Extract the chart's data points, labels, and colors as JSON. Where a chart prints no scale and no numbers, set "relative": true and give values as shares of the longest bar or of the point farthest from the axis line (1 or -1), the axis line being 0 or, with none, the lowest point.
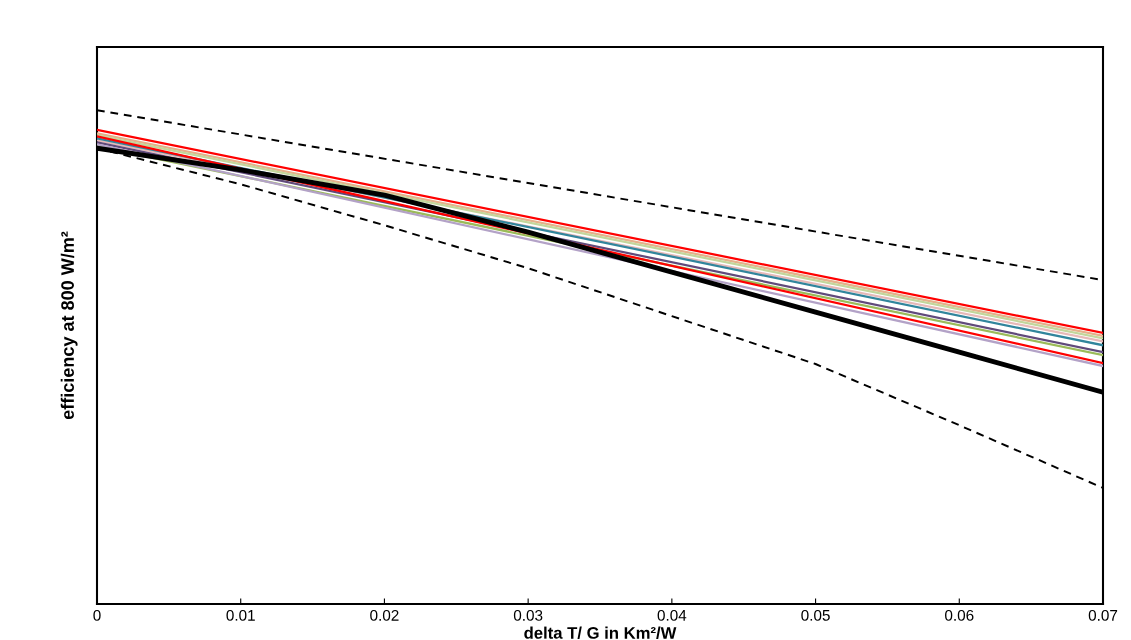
{
  "chart_data": {
    "type": "line",
    "xlabel": "delta T/ G in Km²/W",
    "ylabel": "efficiency at 800 W/m²",
    "relative": true,
    "xlim": [
      0,
      0.07
    ],
    "xticks": [
      0,
      0.01,
      0.02,
      0.03,
      0.04,
      0.05,
      0.06,
      0.07
    ],
    "tick_labels": "x",
    "grid": false,
    "legend": false,
    "marker": "none",
    "series": [
      {
        "color": "#000000",
        "line_style": "dashed",
        "x": [
          0,
          0.07
        ],
        "values": [
          1.0,
          0.656
        ]
      },
      {
        "color": "#000000",
        "line_style": "dashed",
        "x": [
          0,
          0.01,
          0.02,
          0.03,
          0.04,
          0.05,
          0.06,
          0.07
        ],
        "values": [
          0.923,
          0.85,
          0.767,
          0.68,
          0.583,
          0.486,
          0.362,
          0.235
        ]
      },
      {
        "color": "#ff0000",
        "x": [
          0,
          0.07
        ],
        "values": [
          0.96,
          0.549
        ]
      },
      {
        "color": "#e6b08a",
        "x": [
          0,
          0.07
        ],
        "values": [
          0.953,
          0.543
        ]
      },
      {
        "color": "#c3d69b",
        "x": [
          0,
          0.07
        ],
        "values": [
          0.949,
          0.538
        ]
      },
      {
        "color": "#e6b9b8",
        "x": [
          0,
          0.07
        ],
        "values": [
          0.939,
          0.532
        ]
      },
      {
        "color": "#31859c",
        "x": [
          0,
          0.07
        ],
        "values": [
          0.943,
          0.524
        ]
      },
      {
        "color": "#604a7b",
        "x": [
          0,
          0.07
        ],
        "values": [
          0.935,
          0.51
        ]
      },
      {
        "color": "#9bbb59",
        "x": [
          0,
          0.07
        ],
        "values": [
          0.927,
          0.504
        ]
      },
      {
        "color": "#ff0000",
        "x": [
          0,
          0.07
        ],
        "values": [
          0.947,
          0.488
        ]
      },
      {
        "color": "#b3a2c7",
        "x": [
          0,
          0.07
        ],
        "values": [
          0.931,
          0.482
        ]
      },
      {
        "color": "#000000",
        "x": [
          0,
          0.01,
          0.02,
          0.03,
          0.04,
          0.05,
          0.06,
          0.07
        ],
        "values": [
          0.923,
          0.879,
          0.828,
          0.753,
          0.672,
          0.591,
          0.51,
          0.429
        ]
      }
    ]
  }
}
